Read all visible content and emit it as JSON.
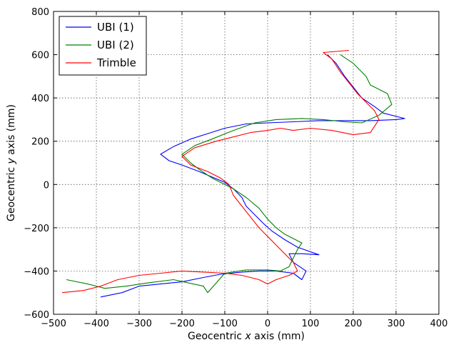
{
  "chart_data": {
    "type": "line",
    "title": "",
    "xlabel_prefix": "Geocentric ",
    "xlabel_var": "x",
    "xlabel_suffix": " axis (mm)",
    "ylabel_prefix": "Geocentric ",
    "ylabel_var": "y",
    "ylabel_suffix": " axis (mm)",
    "xlim": [
      -500,
      400
    ],
    "ylim": [
      -600,
      800
    ],
    "xticks": [
      -500,
      -400,
      -300,
      -200,
      -100,
      0,
      100,
      200,
      300,
      400
    ],
    "yticks": [
      -600,
      -400,
      -200,
      0,
      200,
      400,
      600,
      800
    ],
    "xtick_labels": [
      "−500",
      "−400",
      "−300",
      "−200",
      "−100",
      "0",
      "100",
      "200",
      "300",
      "400"
    ],
    "ytick_labels": [
      "−600",
      "−400",
      "−200",
      "0",
      "200",
      "400",
      "600",
      "800"
    ],
    "grid": true,
    "legend_position": "top-left",
    "series": [
      {
        "name": "UBI (1)",
        "color": "#0000ff",
        "points": [
          [
            -390,
            -520
          ],
          [
            -340,
            -500
          ],
          [
            -300,
            -470
          ],
          [
            -250,
            -460
          ],
          [
            -200,
            -450
          ],
          [
            -150,
            -430
          ],
          [
            -110,
            -415
          ],
          [
            -60,
            -405
          ],
          [
            -20,
            -400
          ],
          [
            20,
            -400
          ],
          [
            60,
            -410
          ],
          [
            80,
            -440
          ],
          [
            90,
            -400
          ],
          [
            60,
            -360
          ],
          [
            50,
            -320
          ],
          [
            80,
            -320
          ],
          [
            120,
            -325
          ],
          [
            70,
            -290
          ],
          [
            40,
            -255
          ],
          [
            10,
            -215
          ],
          [
            -10,
            -180
          ],
          [
            -30,
            -140
          ],
          [
            -50,
            -100
          ],
          [
            -60,
            -60
          ],
          [
            -80,
            -20
          ],
          [
            -100,
            10
          ],
          [
            -130,
            35
          ],
          [
            -160,
            60
          ],
          [
            -200,
            90
          ],
          [
            -230,
            110
          ],
          [
            -250,
            140
          ],
          [
            -220,
            175
          ],
          [
            -180,
            210
          ],
          [
            -140,
            235
          ],
          [
            -100,
            260
          ],
          [
            -50,
            280
          ],
          [
            0,
            285
          ],
          [
            60,
            290
          ],
          [
            120,
            295
          ],
          [
            180,
            295
          ],
          [
            240,
            295
          ],
          [
            300,
            300
          ],
          [
            320,
            305
          ],
          [
            270,
            330
          ],
          [
            250,
            360
          ],
          [
            220,
            400
          ],
          [
            200,
            450
          ],
          [
            180,
            500
          ],
          [
            160,
            560
          ],
          [
            140,
            600
          ]
        ]
      },
      {
        "name": "UBI (2)",
        "color": "#008000",
        "points": [
          [
            -470,
            -440
          ],
          [
            -420,
            -460
          ],
          [
            -380,
            -480
          ],
          [
            -330,
            -470
          ],
          [
            -280,
            -455
          ],
          [
            -220,
            -440
          ],
          [
            -150,
            -470
          ],
          [
            -140,
            -500
          ],
          [
            -100,
            -410
          ],
          [
            -50,
            -395
          ],
          [
            0,
            -395
          ],
          [
            30,
            -400
          ],
          [
            50,
            -380
          ],
          [
            60,
            -340
          ],
          [
            70,
            -300
          ],
          [
            80,
            -270
          ],
          [
            60,
            -250
          ],
          [
            40,
            -230
          ],
          [
            20,
            -200
          ],
          [
            0,
            -160
          ],
          [
            -20,
            -110
          ],
          [
            -50,
            -60
          ],
          [
            -80,
            -20
          ],
          [
            -100,
            0
          ],
          [
            -130,
            30
          ],
          [
            -160,
            70
          ],
          [
            -180,
            100
          ],
          [
            -200,
            140
          ],
          [
            -170,
            180
          ],
          [
            -130,
            210
          ],
          [
            -80,
            250
          ],
          [
            -30,
            285
          ],
          [
            20,
            300
          ],
          [
            80,
            305
          ],
          [
            130,
            300
          ],
          [
            180,
            290
          ],
          [
            220,
            285
          ],
          [
            260,
            320
          ],
          [
            290,
            370
          ],
          [
            280,
            420
          ],
          [
            240,
            460
          ],
          [
            230,
            500
          ],
          [
            200,
            560
          ],
          [
            170,
            600
          ]
        ]
      },
      {
        "name": "Trimble",
        "color": "#ff0000",
        "points": [
          [
            -480,
            -500
          ],
          [
            -430,
            -490
          ],
          [
            -390,
            -470
          ],
          [
            -350,
            -440
          ],
          [
            -300,
            -420
          ],
          [
            -250,
            -410
          ],
          [
            -200,
            -400
          ],
          [
            -150,
            -405
          ],
          [
            -100,
            -410
          ],
          [
            -60,
            -420
          ],
          [
            -20,
            -440
          ],
          [
            0,
            -460
          ],
          [
            20,
            -440
          ],
          [
            50,
            -420
          ],
          [
            70,
            -400
          ],
          [
            60,
            -360
          ],
          [
            40,
            -320
          ],
          [
            20,
            -280
          ],
          [
            0,
            -240
          ],
          [
            -20,
            -200
          ],
          [
            -40,
            -150
          ],
          [
            -60,
            -100
          ],
          [
            -80,
            -50
          ],
          [
            -90,
            0
          ],
          [
            -110,
            30
          ],
          [
            -140,
            60
          ],
          [
            -180,
            90
          ],
          [
            -200,
            130
          ],
          [
            -170,
            170
          ],
          [
            -120,
            200
          ],
          [
            -80,
            220
          ],
          [
            -40,
            240
          ],
          [
            0,
            250
          ],
          [
            30,
            260
          ],
          [
            60,
            250
          ],
          [
            100,
            260
          ],
          [
            150,
            250
          ],
          [
            200,
            230
          ],
          [
            240,
            240
          ],
          [
            260,
            300
          ],
          [
            250,
            340
          ],
          [
            230,
            380
          ],
          [
            210,
            420
          ],
          [
            190,
            470
          ],
          [
            170,
            520
          ],
          [
            150,
            580
          ],
          [
            130,
            610
          ],
          [
            190,
            620
          ]
        ]
      }
    ]
  }
}
